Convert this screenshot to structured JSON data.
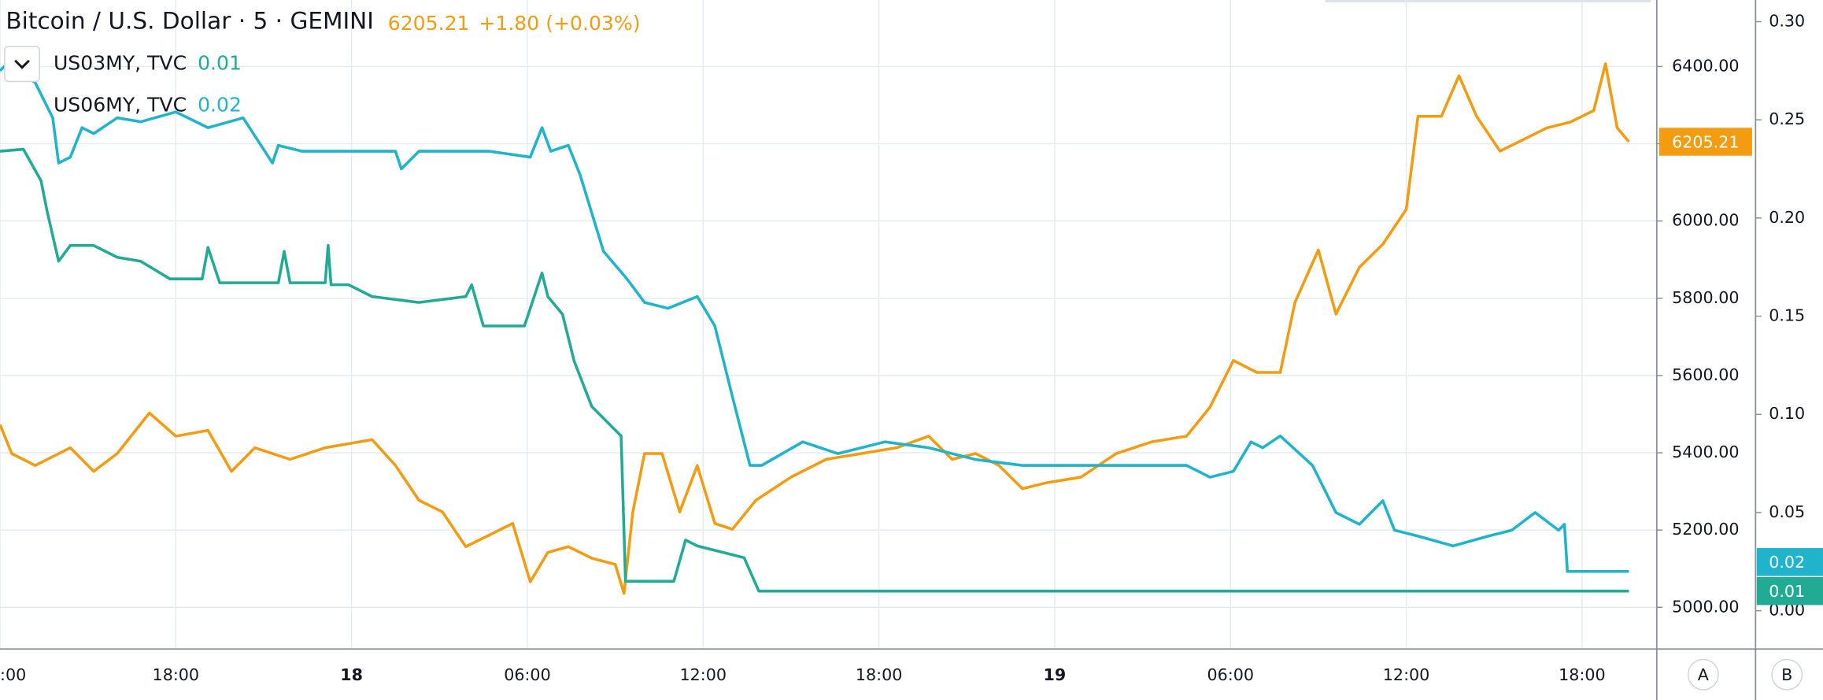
{
  "chart_data": {
    "type": "line",
    "xlim": [
      0,
      56.55
    ],
    "xticks": [
      {
        "value": 0,
        "label": ":00"
      },
      {
        "value": 6,
        "label": "18:00"
      },
      {
        "value": 12,
        "label": "18"
      },
      {
        "value": 18,
        "label": "06:00"
      },
      {
        "value": 24,
        "label": "12:00"
      },
      {
        "value": 30,
        "label": "18:00"
      },
      {
        "value": 36,
        "label": "19"
      },
      {
        "value": 42,
        "label": "06:00"
      },
      {
        "value": 48,
        "label": "12:00"
      },
      {
        "value": 54,
        "label": "18:00"
      }
    ],
    "ylim": [
      4892,
      6572
    ],
    "yticks": [
      {
        "value": 5000,
        "label": "5000.00"
      },
      {
        "value": 5200,
        "label": "5200.00"
      },
      {
        "value": 5400,
        "label": "5400.00"
      },
      {
        "value": 5600,
        "label": "5600.00"
      },
      {
        "value": 5800,
        "label": "5800.00"
      },
      {
        "value": 6000,
        "label": "6000.00"
      },
      {
        "value": 6200,
        "label": "6200.00"
      },
      {
        "value": 6400,
        "label": "6400.00"
      }
    ],
    "y2lim": [
      -0.0195,
      0.311
    ],
    "y2ticks": [
      {
        "value": 0,
        "label": "0.00"
      },
      {
        "value": 0.05,
        "label": "0.05"
      },
      {
        "value": 0.1,
        "label": "0.10"
      },
      {
        "value": 0.15,
        "label": "0.15"
      },
      {
        "value": 0.2,
        "label": "0.20"
      },
      {
        "value": 0.25,
        "label": "0.25"
      },
      {
        "value": 0.3,
        "label": "0.30"
      }
    ],
    "grid": true,
    "axis_buttons": [
      "A",
      "B"
    ],
    "series": [
      {
        "name": "Bitcoin / U.S. Dollar · 5 · GEMINI",
        "color": "#f39c12",
        "axis": "y",
        "last": "6205.21",
        "change": "+1.80 (+0.03%)",
        "x": [
          0,
          0.4,
          1.2,
          2.4,
          3.2,
          4.0,
          5.1,
          6.0,
          7.1,
          7.9,
          8.7,
          9.9,
          11.1,
          12.7,
          13.5,
          14.3,
          15.1,
          15.9,
          16.7,
          17.5,
          18.1,
          18.7,
          19.4,
          20.2,
          21.0,
          21.3,
          21.6,
          22.0,
          22.6,
          23.2,
          23.8,
          24.4,
          25.0,
          25.8,
          27.0,
          28.2,
          29.4,
          30.6,
          31.7,
          32.5,
          33.3,
          34.1,
          34.9,
          35.7,
          36.9,
          38.1,
          39.3,
          40.5,
          41.3,
          42.1,
          42.9,
          43.7,
          44.2,
          45.0,
          45.6,
          46.4,
          47.2,
          48.0,
          48.4,
          49.2,
          49.8,
          50.4,
          51.2,
          52.0,
          52.8,
          53.6,
          54.4,
          54.8,
          55.2,
          55.6
        ],
        "values": [
          5473,
          5398,
          5367,
          5413,
          5352,
          5398,
          5503,
          5443,
          5458,
          5352,
          5413,
          5383,
          5413,
          5434,
          5367,
          5277,
          5247,
          5157,
          5187,
          5217,
          5066,
          5142,
          5157,
          5127,
          5111,
          5036,
          5247,
          5398,
          5398,
          5247,
          5367,
          5217,
          5202,
          5277,
          5337,
          5383,
          5398,
          5413,
          5443,
          5383,
          5398,
          5367,
          5307,
          5322,
          5337,
          5398,
          5428,
          5443,
          5518,
          5639,
          5608,
          5608,
          5789,
          5925,
          5759,
          5880,
          5940,
          6030,
          6271,
          6271,
          6376,
          6271,
          6181,
          6211,
          6241,
          6256,
          6286,
          6407,
          6241,
          6205.21
        ]
      },
      {
        "name": "US03MY, TVC",
        "color": "#22ab94",
        "axis": "y2",
        "last": "0.01",
        "x": [
          0,
          0.8,
          1.4,
          1.6,
          2.0,
          2.4,
          3.2,
          4.0,
          4.8,
          5.8,
          6.9,
          7.1,
          7.5,
          9.5,
          9.7,
          9.9,
          11.1,
          11.2,
          11.3,
          11.9,
          12.7,
          14.3,
          15.9,
          16.1,
          16.5,
          17.9,
          18.5,
          18.7,
          19.2,
          19.6,
          20.2,
          20.6,
          21.2,
          21.35,
          23.0,
          23.4,
          23.8,
          25.4,
          25.9,
          55.6
        ],
        "values": [
          0.234,
          0.235,
          0.219,
          0.204,
          0.178,
          0.186,
          0.186,
          0.18,
          0.178,
          0.169,
          0.169,
          0.185,
          0.167,
          0.167,
          0.183,
          0.167,
          0.167,
          0.186,
          0.166,
          0.166,
          0.16,
          0.157,
          0.16,
          0.166,
          0.145,
          0.145,
          0.172,
          0.16,
          0.151,
          0.127,
          0.104,
          0.098,
          0.089,
          0.015,
          0.015,
          0.036,
          0.033,
          0.027,
          0.01,
          0.01
        ]
      },
      {
        "name": "US06MY, TVC",
        "color": "#1fb4cc",
        "axis": "y2",
        "last": "0.02",
        "x": [
          0,
          0.2,
          1.2,
          1.8,
          2.0,
          2.4,
          2.8,
          3.2,
          4.0,
          4.8,
          6.0,
          7.1,
          8.3,
          9.3,
          9.5,
          10.3,
          11.9,
          13.5,
          13.7,
          14.3,
          16.7,
          18.1,
          18.5,
          18.8,
          19.4,
          19.8,
          20.6,
          21.4,
          22.0,
          22.8,
          23.8,
          24.4,
          25.0,
          25.6,
          26.0,
          27.4,
          28.6,
          30.2,
          31.7,
          33.3,
          34.9,
          36.9,
          39.3,
          40.5,
          41.3,
          42.1,
          42.7,
          43.1,
          43.7,
          44.8,
          45.6,
          46.4,
          47.2,
          47.6,
          48.4,
          49.6,
          50.8,
          51.6,
          52.4,
          53.2,
          53.4,
          53.5,
          55.6
        ],
        "values": [
          0.275,
          0.278,
          0.269,
          0.251,
          0.228,
          0.231,
          0.246,
          0.243,
          0.251,
          0.249,
          0.254,
          0.246,
          0.251,
          0.228,
          0.237,
          0.234,
          0.234,
          0.234,
          0.225,
          0.234,
          0.234,
          0.231,
          0.246,
          0.234,
          0.237,
          0.222,
          0.183,
          0.169,
          0.157,
          0.154,
          0.16,
          0.145,
          0.109,
          0.074,
          0.074,
          0.086,
          0.08,
          0.086,
          0.083,
          0.077,
          0.074,
          0.074,
          0.074,
          0.074,
          0.068,
          0.071,
          0.086,
          0.083,
          0.089,
          0.074,
          0.05,
          0.044,
          0.056,
          0.041,
          0.038,
          0.033,
          0.038,
          0.041,
          0.05,
          0.041,
          0.044,
          0.02,
          0.02
        ]
      }
    ]
  }
}
